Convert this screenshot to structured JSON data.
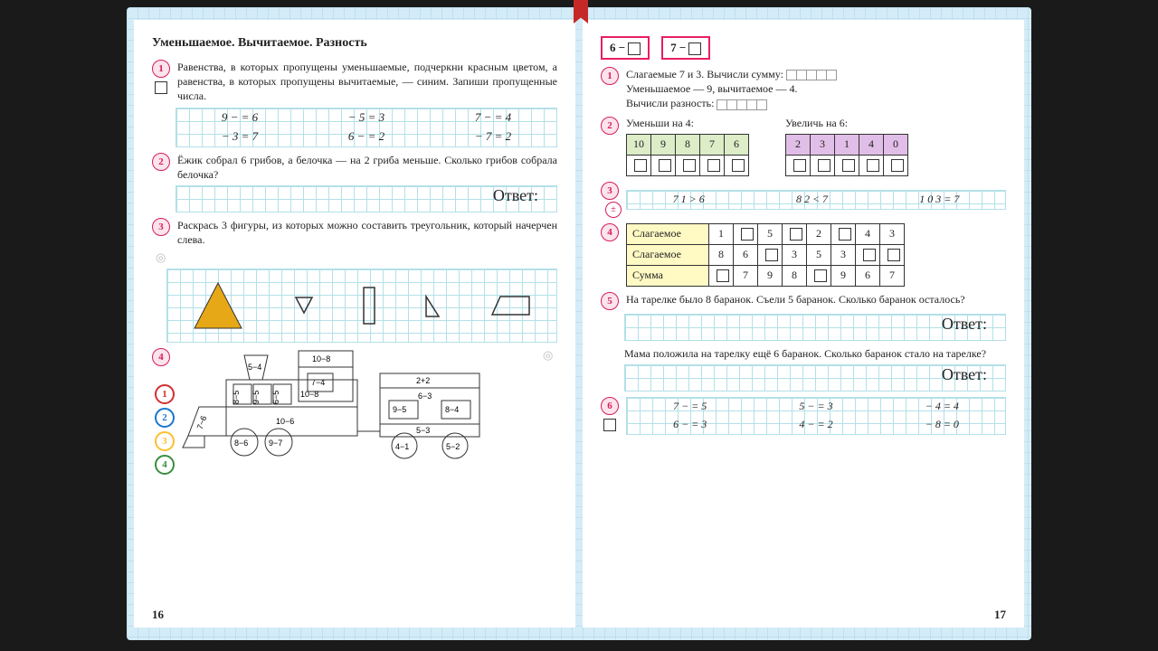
{
  "left": {
    "pageNum": "16",
    "title": "Уменьшаемое. Вычитаемое. Разность",
    "t1": {
      "num": "1",
      "text": "Равенства, в которых пропущены уменьшаемые, подчеркни красным цветом, а равенства, в которых пропущены вычитаемые, — синим. Запиши пропущенные числа."
    },
    "eq": {
      "r1": [
        "9 −   = 6",
        "  − 5 = 3",
        "7 −   = 4"
      ],
      "r2": [
        "  − 3 = 7",
        "6 −   = 2",
        "  − 7 = 2"
      ]
    },
    "t2": {
      "num": "2",
      "text": "Ёжик собрал 6 грибов, а белочка — на 2 гриба меньше. Сколько грибов собрала белочка?"
    },
    "answer": "Ответ:",
    "t3": {
      "num": "3",
      "text": "Раскрась 3 фигуры, из которых можно составить треугольник, который начерчен слева."
    },
    "t4": {
      "num": "4"
    },
    "legend": [
      "1",
      "2",
      "3",
      "4"
    ],
    "train": {
      "chimney": "5−4",
      "cab": "10−8",
      "a": "7−4",
      "b": "10−8",
      "c": "10−6",
      "car_top": "2+2",
      "car_a": "6−3",
      "car_b": "9−5",
      "car_c": "8−4",
      "car_base": "5−3",
      "w1": "8−6",
      "w2": "9−7",
      "w3": "4−1",
      "w4": "5−2",
      "s1": "7−6",
      "s2": "8−5",
      "s3": "9−5",
      "s4": "6−5"
    }
  },
  "right": {
    "pageNum": "17",
    "top": [
      "6 −",
      "7 −"
    ],
    "t1": {
      "num": "1",
      "l1": "Слагаемые 7 и 3. Вычисли сумму:",
      "l2": "Уменьшаемое — 9, вычитаемое — 4.",
      "l3": "Вычисли разность:"
    },
    "t2": {
      "num": "2",
      "a": "Уменьши на 4:",
      "b": "Увеличь на 6:",
      "greenH": [
        "10",
        "9",
        "8",
        "7",
        "6"
      ],
      "purpleH": [
        "2",
        "3",
        "1",
        "4",
        "0"
      ]
    },
    "t3": {
      "num": "3",
      "items": [
        "7   1 > 6",
        "8   2 < 7",
        "1 0   3 = 7"
      ]
    },
    "t4": {
      "num": "4",
      "rows": [
        {
          "h": "Слагаемое",
          "c": [
            "1",
            "□",
            "5",
            "□",
            "2",
            "□",
            "4",
            "3"
          ]
        },
        {
          "h": "Слагаемое",
          "c": [
            "8",
            "6",
            "□",
            "3",
            "5",
            "3",
            "□",
            "□"
          ]
        },
        {
          "h": "Сумма",
          "c": [
            "□",
            "7",
            "9",
            "8",
            "□",
            "9",
            "6",
            "7"
          ]
        }
      ]
    },
    "t5": {
      "num": "5",
      "a": "На тарелке было 8 баранок. Съели 5 баранок. Сколько баранок осталось?",
      "b": "Мама положила на тарелку ещё 6 баранок. Сколько баранок стало на тарелке?"
    },
    "t6": {
      "num": "6",
      "r1": [
        "7 −   = 5",
        "5 −   = 3",
        "  − 4 = 4"
      ],
      "r2": [
        "6 −   = 3",
        "4 −   = 2",
        "  − 8 = 0"
      ]
    }
  }
}
